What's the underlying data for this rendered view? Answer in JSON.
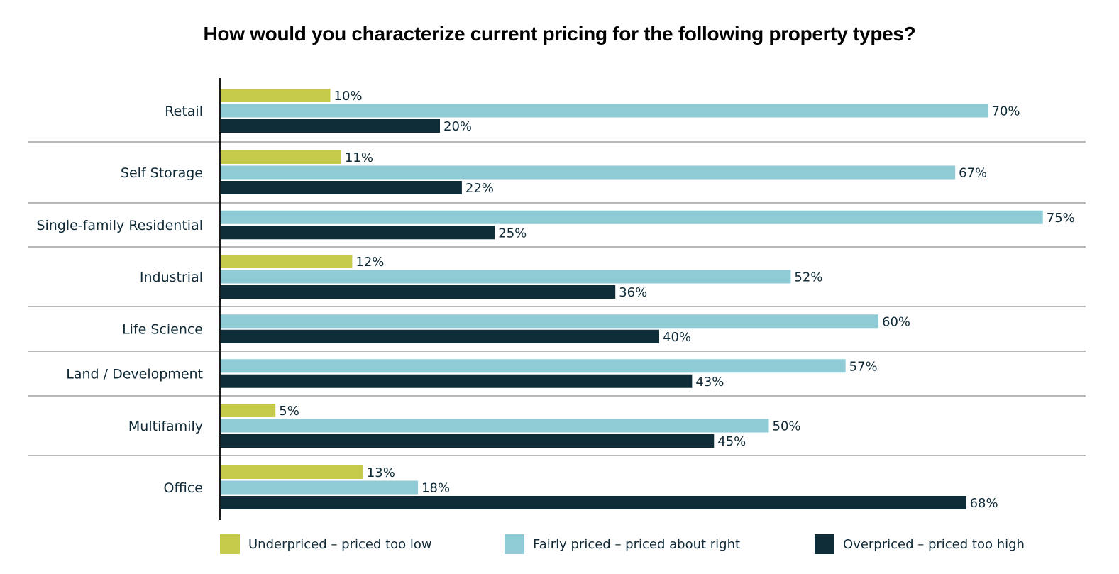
{
  "chart_data": {
    "type": "bar",
    "orientation": "horizontal",
    "title": "How would you characterize current pricing for the following property types?",
    "xlabel": "",
    "ylabel": "",
    "xlim": [
      0,
      75
    ],
    "grid": false,
    "legend_position": "bottom",
    "value_format": "{v}%",
    "categories": [
      "Retail",
      "Self Storage",
      "Single-family Residential",
      "Industrial",
      "Life Science",
      "Land / Development",
      "Multifamily",
      "Office"
    ],
    "series": [
      {
        "name": "Underpriced – priced too low",
        "color": "#c5ca4a",
        "values": [
          10,
          11,
          null,
          12,
          null,
          null,
          5,
          13
        ]
      },
      {
        "name": "Fairly priced – priced about right",
        "color": "#8ecbd4",
        "values": [
          70,
          67,
          75,
          52,
          60,
          57,
          50,
          18
        ]
      },
      {
        "name": "Overpriced – priced too high",
        "color": "#0f2d39",
        "values": [
          20,
          22,
          25,
          36,
          40,
          43,
          45,
          68
        ]
      }
    ]
  },
  "colors": {
    "separator": "#a0a0a0",
    "axis": "#1a1a1a",
    "text": "#0f2a36"
  }
}
